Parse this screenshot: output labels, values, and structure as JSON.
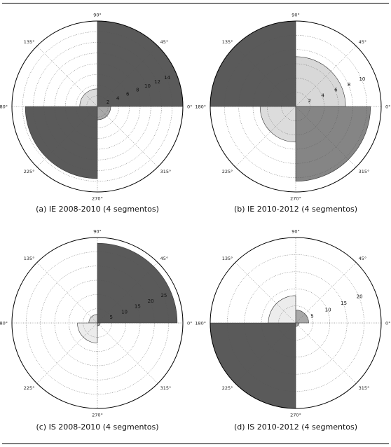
{
  "chart_data": [
    {
      "type": "polar-bar",
      "caption": "(a) IE 2008-2010 (4 segmentos)",
      "angle_labels": [
        "0°",
        "45°",
        "90°",
        "135°",
        "180°",
        "225°",
        "270°",
        "315°"
      ],
      "radial_ticks": [
        2,
        4,
        6,
        8,
        10,
        12,
        14
      ],
      "rmax": 16,
      "sectors": [
        {
          "start_deg": 0,
          "end_deg": 90,
          "value": 16,
          "color": "#5a5a5a"
        },
        {
          "start_deg": 90,
          "end_deg": 180,
          "value": 3.3,
          "color": "#dcdcdc"
        },
        {
          "start_deg": 180,
          "end_deg": 270,
          "value": 13.5,
          "color": "#5a5a5a"
        },
        {
          "start_deg": 270,
          "end_deg": 360,
          "value": 2.5,
          "color": "#a8a8a8"
        }
      ]
    },
    {
      "type": "polar-bar",
      "caption": "(b) IE 2010-2012 (4 segmentos)",
      "angle_labels": [
        "0°",
        "45°",
        "90°",
        "135°",
        "180°",
        "225°",
        "270°",
        "315°"
      ],
      "radial_ticks": [
        2,
        4,
        6,
        8,
        10
      ],
      "rmax": 12,
      "sectors": [
        {
          "start_deg": 0,
          "end_deg": 90,
          "value": 7,
          "color": "#d8d8d8"
        },
        {
          "start_deg": 90,
          "end_deg": 180,
          "value": 12,
          "color": "#5a5a5a"
        },
        {
          "start_deg": 180,
          "end_deg": 270,
          "value": 5,
          "color": "#dcdcdc"
        },
        {
          "start_deg": 270,
          "end_deg": 360,
          "value": 10.5,
          "color": "#858585"
        }
      ]
    },
    {
      "type": "polar-bar",
      "caption": "(c) IS 2008-2010 (4 segmentos)",
      "angle_labels": [
        "0°",
        "45°",
        "90°",
        "135°",
        "180°",
        "225°",
        "270°",
        "315°"
      ],
      "radial_ticks": [
        5,
        10,
        15,
        20,
        25
      ],
      "rmax": 30,
      "sectors": [
        {
          "start_deg": 0,
          "end_deg": 90,
          "value": 28,
          "color": "#5a5a5a"
        },
        {
          "start_deg": 90,
          "end_deg": 180,
          "value": 3,
          "color": "#dcdcdc"
        },
        {
          "start_deg": 180,
          "end_deg": 270,
          "value": 7,
          "color": "#ececec"
        },
        {
          "start_deg": 270,
          "end_deg": 360,
          "value": 1,
          "color": "#a8a8a8"
        }
      ]
    },
    {
      "type": "polar-bar",
      "caption": "(d) IS 2010-2012 (4 segmentos)",
      "angle_labels": [
        "0°",
        "45°",
        "90°",
        "135°",
        "180°",
        "225°",
        "270°",
        "315°"
      ],
      "radial_ticks": [
        5,
        10,
        15,
        20
      ],
      "rmax": 25,
      "sectors": [
        {
          "start_deg": 0,
          "end_deg": 90,
          "value": 3.8,
          "color": "#a8a8a8"
        },
        {
          "start_deg": 90,
          "end_deg": 180,
          "value": 8,
          "color": "#ececec"
        },
        {
          "start_deg": 180,
          "end_deg": 270,
          "value": 25,
          "color": "#5a5a5a"
        },
        {
          "start_deg": 270,
          "end_deg": 360,
          "value": 1,
          "color": "#a8a8a8"
        }
      ]
    }
  ]
}
